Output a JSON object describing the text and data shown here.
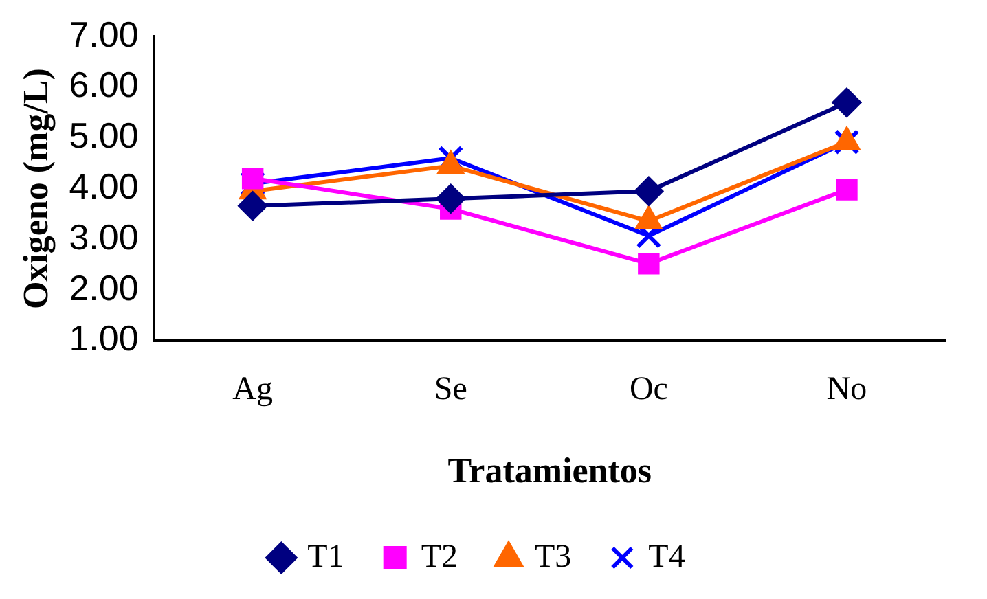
{
  "chart_data": {
    "type": "line",
    "xlabel": "Tratamientos",
    "ylabel": "Oxigeno (mg/L)",
    "categories": [
      "Ag",
      "Se",
      "Oc",
      "No"
    ],
    "series": [
      {
        "name": "T1",
        "color": "#000080",
        "marker": "diamond",
        "values": [
          3.66,
          3.8,
          3.95,
          5.7
        ]
      },
      {
        "name": "T2",
        "color": "#ff00ff",
        "marker": "square",
        "values": [
          4.2,
          3.6,
          2.52,
          3.98
        ]
      },
      {
        "name": "T3",
        "color": "#ff6600",
        "marker": "triangle",
        "values": [
          3.95,
          4.45,
          3.36,
          4.92
        ]
      },
      {
        "name": "T4",
        "color": "#0000ff",
        "marker": "cross",
        "values": [
          4.1,
          4.6,
          3.07,
          4.92
        ]
      }
    ],
    "ylim": [
      1,
      7
    ],
    "yticks": [
      {
        "value": 1,
        "label": "1.00"
      },
      {
        "value": 2,
        "label": "2.00"
      },
      {
        "value": 3,
        "label": "3.00"
      },
      {
        "value": 4,
        "label": "4.00"
      },
      {
        "value": 5,
        "label": "5.00"
      },
      {
        "value": 6,
        "label": "6.00"
      },
      {
        "value": 7,
        "label": "7.00"
      }
    ],
    "grid": false,
    "legend": "bottom",
    "line_style": "solid"
  }
}
